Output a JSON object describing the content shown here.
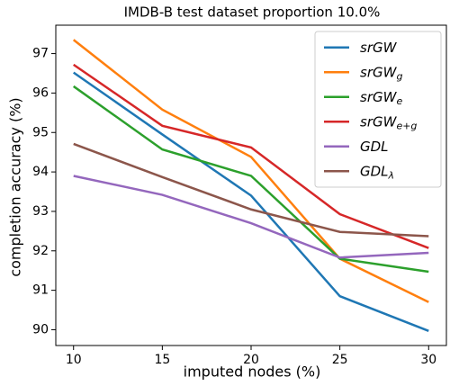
{
  "chart_data": {
    "type": "line",
    "title": "IMDB-B test dataset proportion 10.0%",
    "xlabel": "imputed nodes (%)",
    "ylabel": "completion accuracy (%)",
    "x": [
      10,
      15,
      20,
      25,
      30
    ],
    "xlim": [
      9,
      31
    ],
    "xticks": [
      10,
      15,
      20,
      25,
      30
    ],
    "ylim": [
      89.6,
      97.72
    ],
    "yticks": [
      90,
      91,
      92,
      93,
      94,
      95,
      96,
      97
    ],
    "legend": "upper right",
    "series": [
      {
        "name": "srGW",
        "color": "#1f77b4",
        "values": [
          96.52,
          94.95,
          93.4,
          90.85,
          89.97
        ]
      },
      {
        "name": "srGW_g",
        "color": "#ff7f0e",
        "values": [
          97.35,
          95.58,
          94.38,
          91.8,
          90.7
        ]
      },
      {
        "name": "srGW_e",
        "color": "#2ca02c",
        "values": [
          96.17,
          94.57,
          93.9,
          91.8,
          91.47
        ]
      },
      {
        "name": "srGW_e+g",
        "color": "#d62728",
        "values": [
          96.72,
          95.17,
          94.62,
          92.93,
          92.07
        ]
      },
      {
        "name": "GDL",
        "color": "#9467bd",
        "values": [
          93.9,
          93.42,
          92.7,
          91.83,
          91.95
        ]
      },
      {
        "name": "GDL_λ",
        "color": "#8c564b",
        "values": [
          94.71,
          93.87,
          93.05,
          92.48,
          92.37
        ]
      }
    ]
  }
}
